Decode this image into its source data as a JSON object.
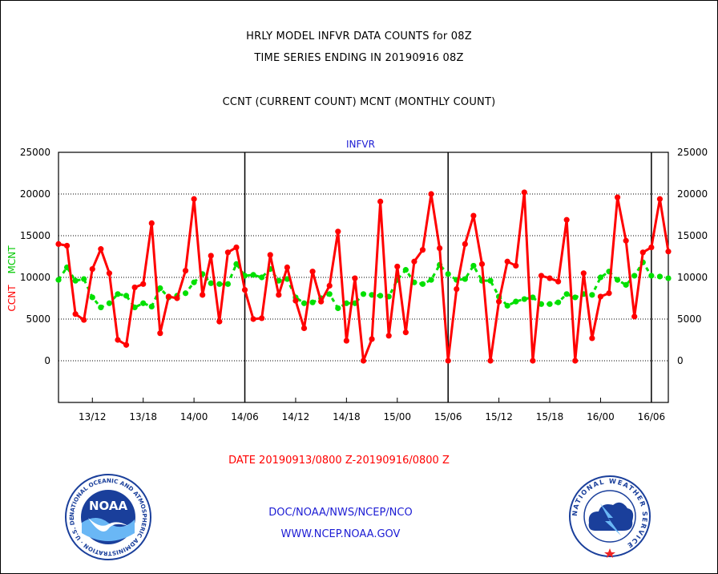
{
  "header": {
    "title_line1": "HRLY MODEL INFVR DATA COUNTS for 08Z",
    "title_line2": "TIME SERIES ENDING IN 20190916 08Z",
    "subtitle": "CCNT (CURRENT COUNT) MCNT (MONTHLY COUNT)"
  },
  "chart_data": {
    "type": "line",
    "title": "INFVR",
    "ylabel_ccnt": "CCNT",
    "ylabel_mcnt": "MCNT",
    "xlabel": "DATE 20190913/0800 Z-20190916/0800 Z",
    "ylim": [
      -5000,
      25000
    ],
    "y_ticks": [
      0,
      5000,
      10000,
      15000,
      20000,
      25000
    ],
    "y_tick_labels": [
      "0",
      "5000",
      "10000",
      "15000",
      "20000",
      "25000"
    ],
    "x_range_hours": [
      0,
      72
    ],
    "x_ticks": [
      {
        "label": "13/12",
        "hour": 4
      },
      {
        "label": "13/18",
        "hour": 10
      },
      {
        "label": "14/00",
        "hour": 16
      },
      {
        "label": "14/06",
        "hour": 22
      },
      {
        "label": "14/12",
        "hour": 28
      },
      {
        "label": "14/18",
        "hour": 34
      },
      {
        "label": "15/00",
        "hour": 40
      },
      {
        "label": "15/06",
        "hour": 46
      },
      {
        "label": "15/12",
        "hour": 52
      },
      {
        "label": "15/18",
        "hour": 58
      },
      {
        "label": "16/00",
        "hour": 64
      },
      {
        "label": "16/06",
        "hour": 70
      }
    ],
    "day_boundaries_hour": [
      22,
      46,
      70
    ],
    "grid": true,
    "series": [
      {
        "name": "CCNT",
        "color": "#ff0000",
        "values": [
          14000,
          13800,
          5600,
          4900,
          11000,
          13400,
          10500,
          2500,
          1900,
          8800,
          9200,
          16500,
          3300,
          7700,
          7500,
          10800,
          19400,
          7900,
          12600,
          4700,
          13000,
          13600,
          8500,
          5000,
          5100,
          12700,
          7900,
          11200,
          7200,
          3900,
          10700,
          7100,
          9000,
          15500,
          2400,
          9900,
          0,
          2600,
          19100,
          3000,
          11300,
          3400,
          11900,
          13300,
          20000,
          13500,
          0,
          8600,
          14000,
          17400,
          11600,
          0,
          7100,
          11900,
          11400,
          20200,
          0,
          10200,
          9900,
          9500,
          16900,
          0,
          10500,
          2700,
          7700,
          8100,
          19600,
          14400,
          5300,
          13000,
          13600,
          19400,
          13100
        ]
      },
      {
        "name": "MCNT",
        "color": "#00e000",
        "values": [
          9700,
          11200,
          9600,
          9800,
          7600,
          6400,
          6900,
          8000,
          7800,
          6400,
          6900,
          6500,
          8700,
          7600,
          7800,
          8100,
          9400,
          10400,
          9300,
          9200,
          9200,
          11600,
          10200,
          10300,
          10000,
          11000,
          9600,
          9800,
          7600,
          6900,
          7000,
          7500,
          8000,
          6300,
          6900,
          6900,
          8000,
          7900,
          7800,
          7700,
          9700,
          10900,
          9400,
          9200,
          9700,
          11500,
          10400,
          9700,
          9800,
          11400,
          9600,
          9600,
          7700,
          6600,
          7100,
          7400,
          7600,
          6800,
          6800,
          7000,
          8000,
          7600,
          8000,
          7900,
          10000,
          10700,
          9700,
          9100,
          10200,
          11800,
          10200,
          10100,
          9900
        ]
      }
    ]
  },
  "footer": {
    "line1": "DOC/NOAA/NWS/NCEP/NCO",
    "line2": "WWW.NCEP.NOAA.GOV"
  },
  "logos": {
    "noaa_text": "NOAA",
    "noaa_ring_text": "NATIONAL OCEANIC AND ATMOSPHERIC ADMINISTRATION · U.S. DEPARTMENT OF COMMERCE",
    "nws_ring_text": "NATIONAL WEATHER SERVICE"
  },
  "colors": {
    "ccnt": "#ff0000",
    "mcnt": "#00e000",
    "title_blue": "#1c1cd4",
    "date_red": "#ff0000"
  }
}
